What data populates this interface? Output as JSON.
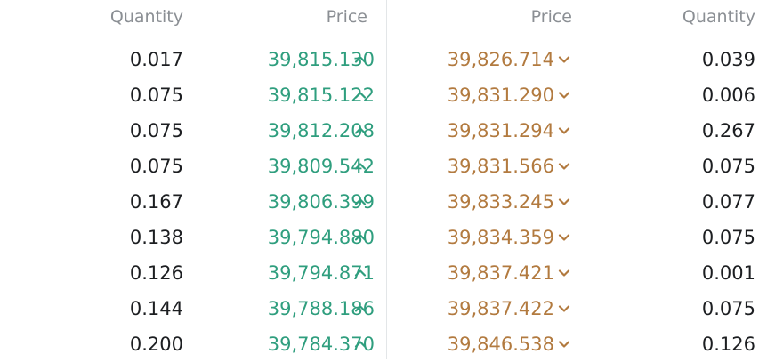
{
  "headers": {
    "bid_quantity": "Quantity",
    "bid_price": "Price",
    "ask_price": "Price",
    "ask_quantity": "Quantity"
  },
  "colors": {
    "bid": "#2f9e7e",
    "ask": "#b27a3f",
    "header": "#8b8f94",
    "quantity": "#1c1e21"
  },
  "icons": {
    "bid": "chevron-up-icon",
    "ask": "chevron-down-icon"
  },
  "rows": [
    {
      "bid_qty": "0.017",
      "bid_price": "39,815.130",
      "ask_price": "39,826.714",
      "ask_qty": "0.039"
    },
    {
      "bid_qty": "0.075",
      "bid_price": "39,815.122",
      "ask_price": "39,831.290",
      "ask_qty": "0.006"
    },
    {
      "bid_qty": "0.075",
      "bid_price": "39,812.208",
      "ask_price": "39,831.294",
      "ask_qty": "0.267"
    },
    {
      "bid_qty": "0.075",
      "bid_price": "39,809.542",
      "ask_price": "39,831.566",
      "ask_qty": "0.075"
    },
    {
      "bid_qty": "0.167",
      "bid_price": "39,806.399",
      "ask_price": "39,833.245",
      "ask_qty": "0.077"
    },
    {
      "bid_qty": "0.138",
      "bid_price": "39,794.880",
      "ask_price": "39,834.359",
      "ask_qty": "0.075"
    },
    {
      "bid_qty": "0.126",
      "bid_price": "39,794.871",
      "ask_price": "39,837.421",
      "ask_qty": "0.001"
    },
    {
      "bid_qty": "0.144",
      "bid_price": "39,788.186",
      "ask_price": "39,837.422",
      "ask_qty": "0.075"
    },
    {
      "bid_qty": "0.200",
      "bid_price": "39,784.370",
      "ask_price": "39,846.538",
      "ask_qty": "0.126"
    }
  ]
}
